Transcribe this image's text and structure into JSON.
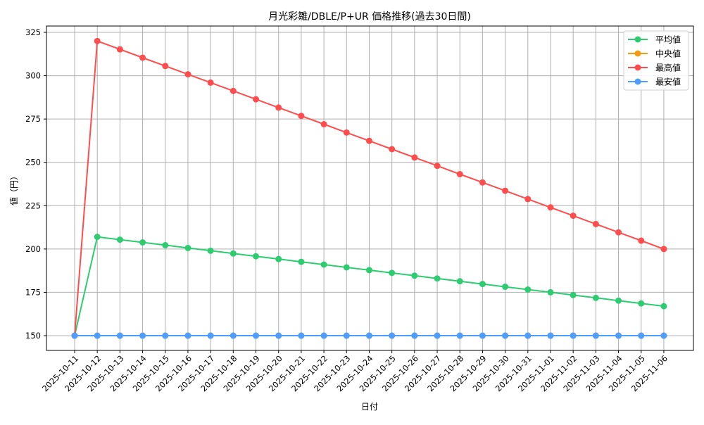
{
  "chart_data": {
    "type": "line",
    "title": "月光彩雛/DBLE/P+UR 価格推移(過去30日間)",
    "xlabel": "日付",
    "ylabel": "値（円）",
    "ylim": [
      142,
      329
    ],
    "yticks": [
      150,
      175,
      200,
      225,
      250,
      275,
      300,
      325
    ],
    "grid": true,
    "legend_position": "upper right",
    "categories": [
      "2025-10-11",
      "2025-10-12",
      "2025-10-13",
      "2025-10-14",
      "2025-10-15",
      "2025-10-16",
      "2025-10-17",
      "2025-10-18",
      "2025-10-19",
      "2025-10-20",
      "2025-10-21",
      "2025-10-22",
      "2025-10-23",
      "2025-10-24",
      "2025-10-25",
      "2025-10-26",
      "2025-10-27",
      "2025-10-28",
      "2025-10-29",
      "2025-10-30",
      "2025-10-31",
      "2025-11-01",
      "2025-11-02",
      "2025-11-03",
      "2025-11-04",
      "2025-11-05",
      "2025-11-06"
    ],
    "series": [
      {
        "name": "平均値",
        "color": "#2ecc71",
        "values": [
          150,
          207,
          205.4,
          203.8,
          202.2,
          200.6,
          199,
          197.4,
          195.8,
          194.2,
          192.6,
          191,
          189.4,
          187.8,
          186.2,
          184.6,
          183,
          181.4,
          179.8,
          178.2,
          176.6,
          175,
          173.4,
          171.8,
          170.2,
          168.6,
          167
        ]
      },
      {
        "name": "中央値",
        "color": "#f39c12",
        "values": [
          150,
          150,
          150,
          150,
          150,
          150,
          150,
          150,
          150,
          150,
          150,
          150,
          150,
          150,
          150,
          150,
          150,
          150,
          150,
          150,
          150,
          150,
          150,
          150,
          150,
          150,
          150
        ]
      },
      {
        "name": "最高値",
        "color": "#ff4d4d",
        "values": [
          150,
          320,
          315.2,
          310.4,
          305.6,
          300.8,
          296,
          291.2,
          286.4,
          281.6,
          276.8,
          272,
          267.2,
          262.4,
          257.6,
          252.8,
          248,
          243.2,
          238.4,
          233.6,
          228.8,
          224,
          219.2,
          214.4,
          209.6,
          204.8,
          200
        ]
      },
      {
        "name": "最安値",
        "color": "#4d9eff",
        "values": [
          150,
          150,
          150,
          150,
          150,
          150,
          150,
          150,
          150,
          150,
          150,
          150,
          150,
          150,
          150,
          150,
          150,
          150,
          150,
          150,
          150,
          150,
          150,
          150,
          150,
          150,
          150
        ]
      }
    ]
  }
}
